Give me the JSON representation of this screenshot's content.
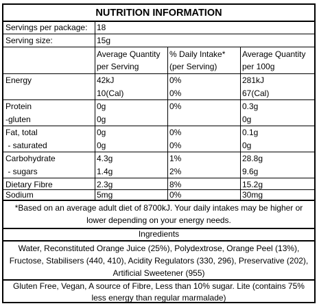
{
  "title": "NUTRITION INFORMATION",
  "servings_per_package": {
    "label": "Servings per package:",
    "value": "18"
  },
  "serving_size": {
    "label": "Serving size:",
    "value": "15g"
  },
  "headers": {
    "col1": [
      "Average Quantity",
      "per Serving"
    ],
    "col2": [
      "% Daily Intake*",
      "(per Serving)"
    ],
    "col3": [
      "Average Quantity",
      "per 100g"
    ]
  },
  "rows": [
    {
      "name": "Energy",
      "lines": [
        [
          "42kJ",
          "0%",
          "281kJ"
        ],
        [
          "10(Cal)",
          "0%",
          "67(Cal)"
        ]
      ]
    },
    {
      "name": "Protein",
      "lines": [
        [
          "0g",
          "0%",
          "0.3g"
        ]
      ]
    },
    {
      "name": "-gluten",
      "lines": [
        [
          "0g",
          "",
          "0g"
        ]
      ]
    },
    {
      "name": "Fat, total",
      "lines": [
        [
          "0g",
          "0%",
          "0.1g"
        ]
      ]
    },
    {
      "name": " - saturated",
      "lines": [
        [
          "0g",
          "0%",
          "0g"
        ]
      ]
    },
    {
      "name": "Carbohydrate",
      "lines": [
        [
          "4.3g",
          "1%",
          "28.8g"
        ]
      ]
    },
    {
      "name": " - sugars",
      "lines": [
        [
          "1.4g",
          "2%",
          "9.6g"
        ]
      ]
    },
    {
      "name": "Dietary Fibre",
      "lines": [
        [
          "2.3g",
          "8%",
          "15.2g"
        ]
      ]
    },
    {
      "name": "Sodium",
      "lines": [
        [
          "5mg",
          "0%",
          "30mg"
        ]
      ]
    }
  ],
  "footnote": [
    "*Based on an average adult diet of 8700kJ. Your daily intakes may be higher or",
    "lower depending on your energy needs."
  ],
  "ingredients_heading": "Ingredients",
  "ingredients": [
    "Water, Reconstituted Orange Juice (25%), Polydextrose, Orange Peel (13%),",
    "Fructose, Stabilisers (440, 410), Acidity Regulators (330, 296), Preservative (202),",
    "Artificial Sweetener (955)"
  ],
  "claims": [
    "Gluten Free, Vegan, A source of Fibre, Less than 10% sugar. Lite (contains 75%",
    "less energy than regular marmalade)"
  ]
}
